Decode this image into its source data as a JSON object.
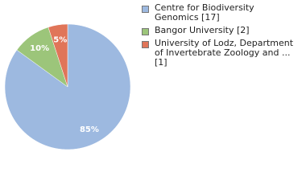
{
  "chart_data": {
    "type": "pie",
    "categories": [
      "Centre for Biodiversity Genomics [17]",
      "Bangor University [2]",
      "University of Lodz, Department of Invertebrate Zoology and ... [1]"
    ],
    "values": [
      85,
      10,
      5
    ],
    "value_labels": [
      "85%",
      "10%",
      "5%"
    ],
    "colors": [
      "#9db9e0",
      "#9cc57a",
      "#e07559"
    ]
  }
}
